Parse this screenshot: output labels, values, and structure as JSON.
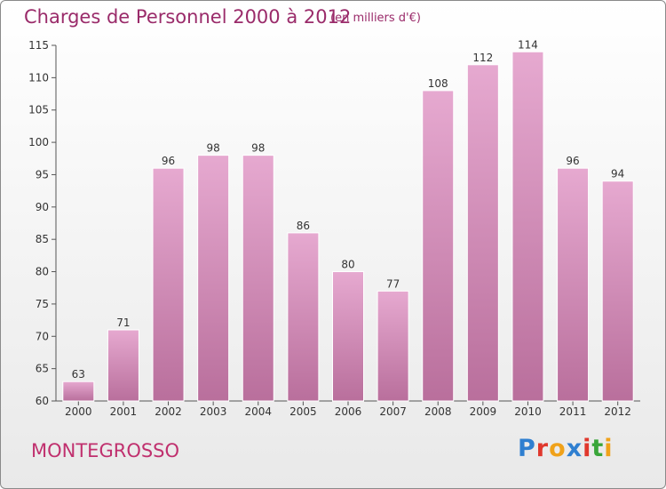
{
  "header": {
    "title": "Charges de Personnel 2000 à 2012",
    "subtitle": "(en milliers d'€)"
  },
  "footer": {
    "town": "MONTEGROSSO",
    "brand": "Proxiti",
    "brand_letters": [
      {
        "char": "P",
        "color": "#2f7fd0"
      },
      {
        "char": "r",
        "color": "#e0382d"
      },
      {
        "char": "o",
        "color": "#f0a21a"
      },
      {
        "char": "x",
        "color": "#2f7fd0"
      },
      {
        "char": "i",
        "color": "#e0382d"
      },
      {
        "char": "t",
        "color": "#3aa63a"
      },
      {
        "char": "i",
        "color": "#f0a21a"
      }
    ]
  },
  "colors": {
    "bar_top": "#e6a9d0",
    "bar_bottom": "#b96f9c",
    "title": "#9a2b6a",
    "town": "#c0306e"
  },
  "chart_data": {
    "type": "bar",
    "title": "Charges de Personnel 2000 à 2012",
    "subtitle": "(en milliers d'€)",
    "categories": [
      "2000",
      "2001",
      "2002",
      "2003",
      "2004",
      "2005",
      "2006",
      "2007",
      "2008",
      "2009",
      "2010",
      "2011",
      "2012"
    ],
    "values": [
      63,
      71,
      96,
      98,
      98,
      86,
      80,
      77,
      108,
      112,
      114,
      96,
      94
    ],
    "ylim": [
      60,
      115
    ],
    "yticks": [
      60,
      65,
      70,
      75,
      80,
      85,
      90,
      95,
      100,
      105,
      110,
      115
    ],
    "grid": false,
    "legend": "none"
  }
}
